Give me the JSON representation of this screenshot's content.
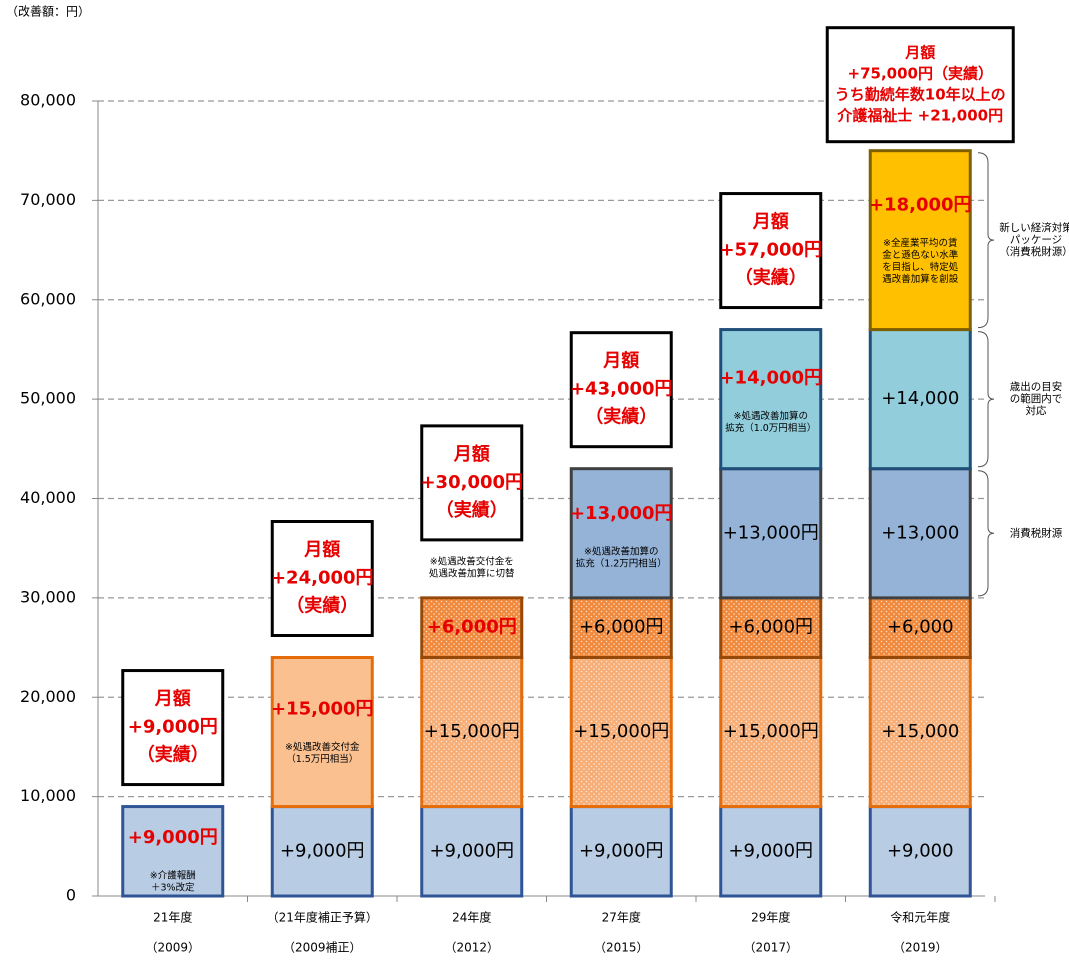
{
  "chart_data": {
    "type": "stacked_bar",
    "unit_label": "（改善額：円）",
    "categories": [
      "21年度",
      "（21年度補正予算）",
      "24年度",
      "27年度",
      "29年度",
      "令和元年度"
    ],
    "sub_categories": [
      "（2009）",
      "（2009補正）",
      "（2012）",
      "（2015）",
      "（2017）",
      "（2019）"
    ],
    "ylim": [
      0,
      80000
    ],
    "yticks": [
      0,
      {
        "value": 10000,
        "label": "10,000"
      },
      {
        "value": 20000,
        "label": "20,000"
      },
      {
        "value": 30000,
        "label": "30,000"
      },
      {
        "value": 40000,
        "label": "40,000"
      },
      {
        "value": 50000,
        "label": "50,000"
      },
      {
        "value": 60000,
        "label": "60,000"
      },
      {
        "value": 70000,
        "label": "70,000"
      },
      {
        "value": 80000,
        "label": "80,000"
      }
    ],
    "grid": true,
    "series": [
      {
        "values": [
          9000,
          9000,
          9000,
          9000,
          9000,
          9000
        ],
        "value_labels": [
          "+9,000円",
          "+9,000円",
          "+9,000円",
          "+9,000円",
          "+9,000円",
          "+9,000"
        ],
        "label_colors": [
          "#e60000",
          "#000000",
          "#000000",
          "#000000",
          "#000000",
          "#000000"
        ],
        "notes": [
          [
            "※介護報酬",
            "＋3%改定"
          ],
          null,
          null,
          null,
          null,
          null
        ],
        "fills": [
          "#b8cce4",
          "#b8cce4",
          "#b8cce4",
          "#b8cce4",
          "#b8cce4",
          "#b8cce4"
        ],
        "dotted": [
          false,
          false,
          false,
          false,
          false,
          false
        ],
        "stroke": "#2f5597"
      },
      {
        "values": [
          null,
          15000,
          15000,
          15000,
          15000,
          15000
        ],
        "value_labels": [
          null,
          "+15,000円",
          "+15,000円",
          "+15,000円",
          "+15,000円",
          "+15,000"
        ],
        "label_colors": [
          null,
          "#e60000",
          "#000000",
          "#000000",
          "#000000",
          "#000000"
        ],
        "notes": [
          null,
          [
            "※処遇改善交付金",
            "（1.5万円相当）"
          ],
          null,
          null,
          null,
          null
        ],
        "fills": [
          null,
          "#fac090",
          "#f6ad76",
          "#f6ad76",
          "#f6ad76",
          "#f6ad76"
        ],
        "dotted": [
          false,
          false,
          true,
          true,
          true,
          true
        ],
        "stroke": "#e46c0a"
      },
      {
        "values": [
          null,
          null,
          6000,
          6000,
          6000,
          6000
        ],
        "value_labels": [
          null,
          null,
          "+6,000円",
          "+6,000円",
          "+6,000円",
          "+6,000"
        ],
        "label_colors": [
          null,
          null,
          "#e60000",
          "#000000",
          "#000000",
          "#000000"
        ],
        "notes": [
          null,
          null,
          null,
          null,
          null,
          null
        ],
        "fills": [
          null,
          null,
          "#f0893c",
          "#f0893c",
          "#f0893c",
          "#f0893c"
        ],
        "dotted": [
          false,
          false,
          true,
          true,
          true,
          true
        ],
        "stroke": "#984807"
      },
      {
        "values": [
          null,
          null,
          null,
          13000,
          13000,
          13000
        ],
        "value_labels": [
          null,
          null,
          null,
          "+13,000円",
          "+13,000円",
          "+13,000"
        ],
        "label_colors": [
          null,
          null,
          null,
          "#e60000",
          "#000000",
          "#000000"
        ],
        "notes": [
          null,
          null,
          null,
          [
            "※処遇改善加算の",
            "拡充（1.2万円相当）"
          ],
          null,
          null
        ],
        "fills": [
          null,
          null,
          null,
          "#95b3d7",
          "#95b3d7",
          "#95b3d7"
        ],
        "dotted": [
          false,
          false,
          false,
          false,
          false,
          false
        ],
        "stroke": "#404040"
      },
      {
        "values": [
          null,
          null,
          null,
          null,
          14000,
          14000
        ],
        "value_labels": [
          null,
          null,
          null,
          null,
          "+14,000円",
          "+14,000"
        ],
        "label_colors": [
          null,
          null,
          null,
          null,
          "#e60000",
          "#000000"
        ],
        "notes": [
          null,
          null,
          null,
          null,
          [
            "※処遇改善加算の",
            "拡充（1.0万円相当）"
          ],
          null
        ],
        "fills": [
          null,
          null,
          null,
          null,
          "#92cddc",
          "#92cddc"
        ],
        "dotted": [
          false,
          false,
          false,
          false,
          false,
          false
        ],
        "stroke": "#1f4e79"
      },
      {
        "values": [
          null,
          null,
          null,
          null,
          null,
          18000
        ],
        "value_labels": [
          null,
          null,
          null,
          null,
          null,
          "+18,000円"
        ],
        "label_colors": [
          null,
          null,
          null,
          null,
          null,
          "#e60000"
        ],
        "notes": [
          null,
          null,
          null,
          null,
          null,
          [
            "※全産業平均の賃",
            "金と遜色ない水準",
            "を目指し、特定処",
            "遇改善加算を創設"
          ]
        ],
        "fills": [
          null,
          null,
          null,
          null,
          null,
          "#ffc000"
        ],
        "dotted": [
          false,
          false,
          false,
          false,
          false,
          false
        ],
        "stroke": "#7f6000"
      }
    ],
    "above_notes": [
      null,
      null,
      [
        "※処遇改善交付金を",
        "処遇改善加算に切替"
      ],
      null,
      null,
      null
    ],
    "annotations": [
      [
        "月額",
        "+9,000円",
        "（実績）"
      ],
      [
        "月額",
        "+24,000円",
        "（実績）"
      ],
      [
        "月額",
        "+30,000円",
        "（実績）"
      ],
      [
        "月額",
        "+43,000円",
        "（実績）"
      ],
      [
        "月額",
        "+57,000円",
        "（実績）"
      ],
      [
        "月額",
        "+75,000円（実績）",
        "うち勤続年数10年以上の",
        "介護福祉士 +21,000円"
      ]
    ],
    "brackets": [
      {
        "series": 5,
        "label": [
          "新しい経済対策",
          "パッケージ",
          "（消費税財源）"
        ]
      },
      {
        "series": 4,
        "label": [
          "歳出の目安",
          "の範囲内で",
          "対応"
        ]
      },
      {
        "series": 3,
        "label": [
          "消費税財源"
        ]
      }
    ]
  }
}
